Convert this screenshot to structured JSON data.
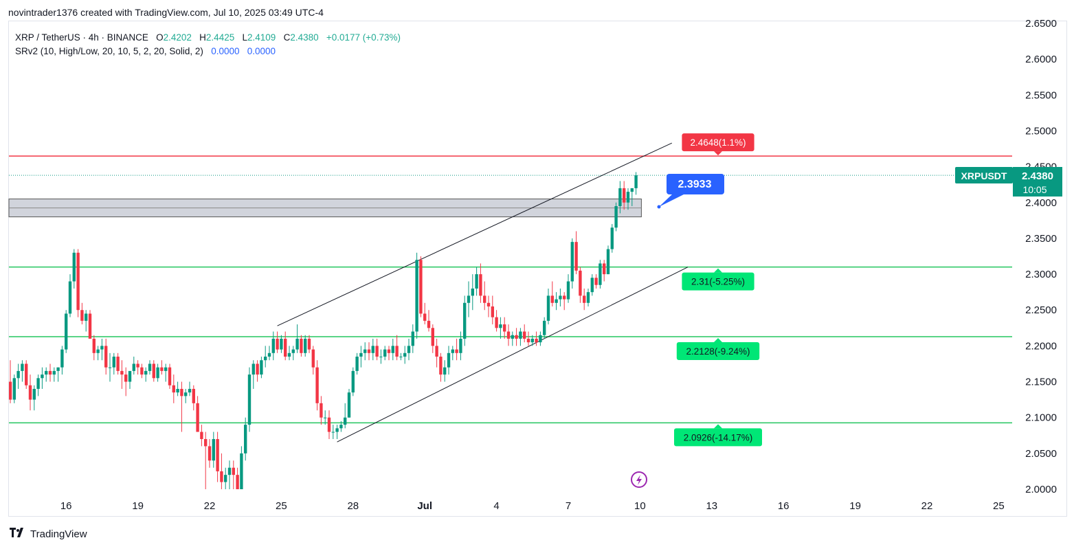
{
  "header": {
    "created_by": "novintrader1376 created with TradingView.com, Jul 10, 2025 03:49 UTC-4"
  },
  "legend": {
    "symbol": "XRP / TetherUS · 4h · BINANCE",
    "open_label": "O",
    "open": "2.4202",
    "high_label": "H",
    "high": "2.4425",
    "low_label": "L",
    "low": "2.4109",
    "close_label": "C",
    "close": "2.4380",
    "change": "+0.0177 (+0.73%)",
    "indicator": "SRv2 (10, High/Low, 20, 10, 5, 2, 20, Solid, 2)",
    "indicator_val1": "0.0000",
    "indicator_val2": "0.0000"
  },
  "footer": {
    "brand": "TradingView"
  },
  "chart_data": {
    "type": "candlestick",
    "symbol": "XRPUSDT",
    "timeframe": "4h",
    "exchange": "BINANCE",
    "ylim": [
      2.0,
      2.65
    ],
    "y_ticks": [
      "2.0000",
      "2.0500",
      "2.1000",
      "2.1500",
      "2.2000",
      "2.2500",
      "2.3000",
      "2.3500",
      "2.4000",
      "2.4500",
      "2.5000",
      "2.5500",
      "2.6000",
      "2.6500"
    ],
    "x_ticks": [
      {
        "label": "16",
        "bar": 14
      },
      {
        "label": "19",
        "bar": 32
      },
      {
        "label": "22",
        "bar": 50
      },
      {
        "label": "25",
        "bar": 68
      },
      {
        "label": "28",
        "bar": 86
      },
      {
        "label": "Jul",
        "bar": 104
      },
      {
        "label": "4",
        "bar": 122
      },
      {
        "label": "7",
        "bar": 140
      },
      {
        "label": "10",
        "bar": 158
      },
      {
        "label": "13",
        "bar": 176
      },
      {
        "label": "16",
        "bar": 194
      },
      {
        "label": "19",
        "bar": 212
      },
      {
        "label": "22",
        "bar": 230
      },
      {
        "label": "25",
        "bar": 248
      }
    ],
    "last_price": {
      "symbol": "XRPUSDT",
      "value": "2.4380",
      "countdown": "10:05",
      "price": 2.438
    },
    "levels": [
      {
        "price": 2.4648,
        "label": "2.4648(1.1%)",
        "color": "#f23645"
      },
      {
        "price": 2.31,
        "label": "2.31(-5.25%)",
        "color": "#00e676"
      },
      {
        "price": 2.2128,
        "label": "2.2128(-9.24%)",
        "color": "#00e676"
      },
      {
        "price": 2.0926,
        "label": "2.0926(-14.17%)",
        "color": "#00e676"
      }
    ],
    "callout": {
      "value": "2.3933",
      "price": 2.3933
    },
    "zone": {
      "top": 2.405,
      "bottom": 2.38
    },
    "channel": {
      "upper": {
        "start": {
          "bar": 67,
          "price": 2.228
        },
        "end": {
          "bar": 166,
          "price": 2.483
        }
      },
      "lower": {
        "start": {
          "bar": 82,
          "price": 2.066
        },
        "end": {
          "bar": 170,
          "price": 2.31
        }
      }
    },
    "candles": [
      [
        2.15,
        2.18,
        2.12,
        2.125
      ],
      [
        2.125,
        2.16,
        2.12,
        2.155
      ],
      [
        2.155,
        2.175,
        2.14,
        2.165
      ],
      [
        2.165,
        2.18,
        2.15,
        2.175
      ],
      [
        2.175,
        2.18,
        2.14,
        2.145
      ],
      [
        2.145,
        2.16,
        2.11,
        2.125
      ],
      [
        2.125,
        2.145,
        2.11,
        2.14
      ],
      [
        2.14,
        2.16,
        2.13,
        2.155
      ],
      [
        2.155,
        2.17,
        2.14,
        2.16
      ],
      [
        2.16,
        2.17,
        2.15,
        2.165
      ],
      [
        2.165,
        2.175,
        2.15,
        2.16
      ],
      [
        2.16,
        2.17,
        2.15,
        2.165
      ],
      [
        2.165,
        2.17,
        2.15,
        2.17
      ],
      [
        2.17,
        2.2,
        2.16,
        2.195
      ],
      [
        2.195,
        2.25,
        2.19,
        2.245
      ],
      [
        2.245,
        2.3,
        2.24,
        2.29
      ],
      [
        2.29,
        2.335,
        2.28,
        2.33
      ],
      [
        2.33,
        2.335,
        2.24,
        2.25
      ],
      [
        2.25,
        2.26,
        2.23,
        2.235
      ],
      [
        2.235,
        2.25,
        2.22,
        2.245
      ],
      [
        2.245,
        2.25,
        2.21,
        2.21
      ],
      [
        2.21,
        2.215,
        2.18,
        2.19
      ],
      [
        2.19,
        2.2,
        2.18,
        2.195
      ],
      [
        2.195,
        2.21,
        2.18,
        2.2
      ],
      [
        2.2,
        2.21,
        2.16,
        2.17
      ],
      [
        2.17,
        2.19,
        2.15,
        2.17
      ],
      [
        2.17,
        2.19,
        2.16,
        2.185
      ],
      [
        2.185,
        2.19,
        2.16,
        2.165
      ],
      [
        2.165,
        2.18,
        2.14,
        2.16
      ],
      [
        2.16,
        2.17,
        2.13,
        2.15
      ],
      [
        2.15,
        2.16,
        2.14,
        2.165
      ],
      [
        2.165,
        2.185,
        2.16,
        2.175
      ],
      [
        2.175,
        2.18,
        2.16,
        2.17
      ],
      [
        2.17,
        2.175,
        2.155,
        2.16
      ],
      [
        2.16,
        2.17,
        2.15,
        2.165
      ],
      [
        2.165,
        2.18,
        2.16,
        2.175
      ],
      [
        2.175,
        2.18,
        2.15,
        2.155
      ],
      [
        2.155,
        2.175,
        2.15,
        2.17
      ],
      [
        2.17,
        2.18,
        2.16,
        2.165
      ],
      [
        2.165,
        2.175,
        2.15,
        2.17
      ],
      [
        2.17,
        2.175,
        2.14,
        2.145
      ],
      [
        2.145,
        2.16,
        2.12,
        2.135
      ],
      [
        2.135,
        2.15,
        2.13,
        2.14
      ],
      [
        2.14,
        2.15,
        2.08,
        2.13
      ],
      [
        2.13,
        2.14,
        2.12,
        2.135
      ],
      [
        2.135,
        2.15,
        2.13,
        2.14
      ],
      [
        2.14,
        2.145,
        2.11,
        2.12
      ],
      [
        2.12,
        2.13,
        2.08,
        2.08
      ],
      [
        2.08,
        2.09,
        2.06,
        2.07
      ],
      [
        2.07,
        2.08,
        2.0,
        2.06
      ],
      [
        2.06,
        2.07,
        2.03,
        2.04
      ],
      [
        2.04,
        2.08,
        2.03,
        2.07
      ],
      [
        2.07,
        2.08,
        2.01,
        2.025
      ],
      [
        2.025,
        2.05,
        2.0,
        2.01
      ],
      [
        2.01,
        2.03,
        2.0,
        2.02
      ],
      [
        2.02,
        2.04,
        2.0,
        2.03
      ],
      [
        2.03,
        2.04,
        2.0,
        2.02
      ],
      [
        2.02,
        2.03,
        2.0,
        2.0
      ],
      [
        2.0,
        2.06,
        2.0,
        2.05
      ],
      [
        2.05,
        2.1,
        2.04,
        2.09
      ],
      [
        2.09,
        2.17,
        2.08,
        2.16
      ],
      [
        2.16,
        2.18,
        2.14,
        2.175
      ],
      [
        2.175,
        2.18,
        2.15,
        2.16
      ],
      [
        2.16,
        2.185,
        2.155,
        2.18
      ],
      [
        2.18,
        2.2,
        2.17,
        2.185
      ],
      [
        2.185,
        2.2,
        2.18,
        2.19
      ],
      [
        2.19,
        2.22,
        2.18,
        2.21
      ],
      [
        2.21,
        2.22,
        2.19,
        2.195
      ],
      [
        2.195,
        2.215,
        2.19,
        2.21
      ],
      [
        2.21,
        2.22,
        2.18,
        2.185
      ],
      [
        2.185,
        2.2,
        2.18,
        2.19
      ],
      [
        2.19,
        2.2,
        2.18,
        2.195
      ],
      [
        2.195,
        2.23,
        2.19,
        2.21
      ],
      [
        2.21,
        2.215,
        2.185,
        2.19
      ],
      [
        2.19,
        2.215,
        2.185,
        2.21
      ],
      [
        2.21,
        2.215,
        2.19,
        2.195
      ],
      [
        2.195,
        2.2,
        2.16,
        2.17
      ],
      [
        2.17,
        2.18,
        2.11,
        2.12
      ],
      [
        2.12,
        2.13,
        2.09,
        2.1
      ],
      [
        2.1,
        2.11,
        2.09,
        2.1
      ],
      [
        2.1,
        2.11,
        2.07,
        2.08
      ],
      [
        2.08,
        2.09,
        2.07,
        2.08
      ],
      [
        2.08,
        2.09,
        2.07,
        2.085
      ],
      [
        2.085,
        2.095,
        2.08,
        2.09
      ],
      [
        2.09,
        2.12,
        2.085,
        2.1
      ],
      [
        2.1,
        2.14,
        2.1,
        2.135
      ],
      [
        2.135,
        2.17,
        2.13,
        2.165
      ],
      [
        2.165,
        2.19,
        2.16,
        2.185
      ],
      [
        2.185,
        2.2,
        2.17,
        2.19
      ],
      [
        2.19,
        2.205,
        2.18,
        2.195
      ],
      [
        2.195,
        2.205,
        2.18,
        2.19
      ],
      [
        2.19,
        2.21,
        2.18,
        2.2
      ],
      [
        2.2,
        2.21,
        2.18,
        2.185
      ],
      [
        2.185,
        2.195,
        2.175,
        2.185
      ],
      [
        2.185,
        2.2,
        2.18,
        2.195
      ],
      [
        2.195,
        2.2,
        2.18,
        2.19
      ],
      [
        2.19,
        2.21,
        2.18,
        2.2
      ],
      [
        2.2,
        2.215,
        2.18,
        2.185
      ],
      [
        2.185,
        2.19,
        2.18,
        2.185
      ],
      [
        2.185,
        2.2,
        2.175,
        2.19
      ],
      [
        2.19,
        2.21,
        2.18,
        2.2
      ],
      [
        2.2,
        2.23,
        2.19,
        2.22
      ],
      [
        2.22,
        2.33,
        2.21,
        2.32
      ],
      [
        2.32,
        2.325,
        2.24,
        2.245
      ],
      [
        2.245,
        2.26,
        2.23,
        2.235
      ],
      [
        2.235,
        2.25,
        2.22,
        2.225
      ],
      [
        2.225,
        2.23,
        2.19,
        2.2
      ],
      [
        2.2,
        2.21,
        2.17,
        2.185
      ],
      [
        2.185,
        2.19,
        2.15,
        2.16
      ],
      [
        2.16,
        2.18,
        2.15,
        2.17
      ],
      [
        2.17,
        2.2,
        2.16,
        2.19
      ],
      [
        2.19,
        2.2,
        2.18,
        2.195
      ],
      [
        2.195,
        2.21,
        2.18,
        2.19
      ],
      [
        2.19,
        2.22,
        2.18,
        2.21
      ],
      [
        2.21,
        2.27,
        2.2,
        2.26
      ],
      [
        2.26,
        2.29,
        2.24,
        2.27
      ],
      [
        2.27,
        2.3,
        2.25,
        2.28
      ],
      [
        2.28,
        2.31,
        2.27,
        2.3
      ],
      [
        2.3,
        2.315,
        2.26,
        2.27
      ],
      [
        2.27,
        2.29,
        2.25,
        2.26
      ],
      [
        2.26,
        2.27,
        2.24,
        2.255
      ],
      [
        2.255,
        2.27,
        2.23,
        2.24
      ],
      [
        2.24,
        2.25,
        2.22,
        2.225
      ],
      [
        2.225,
        2.24,
        2.21,
        2.23
      ],
      [
        2.23,
        2.24,
        2.21,
        2.22
      ],
      [
        2.22,
        2.23,
        2.2,
        2.21
      ],
      [
        2.21,
        2.22,
        2.2,
        2.215
      ],
      [
        2.215,
        2.225,
        2.2,
        2.21
      ],
      [
        2.21,
        2.225,
        2.2,
        2.22
      ],
      [
        2.22,
        2.23,
        2.205,
        2.21
      ],
      [
        2.21,
        2.22,
        2.2,
        2.205
      ],
      [
        2.205,
        2.215,
        2.2,
        2.21
      ],
      [
        2.21,
        2.22,
        2.2,
        2.205
      ],
      [
        2.205,
        2.22,
        2.2,
        2.215
      ],
      [
        2.215,
        2.24,
        2.21,
        2.235
      ],
      [
        2.235,
        2.28,
        2.23,
        2.27
      ],
      [
        2.27,
        2.29,
        2.255,
        2.26
      ],
      [
        2.26,
        2.275,
        2.25,
        2.265
      ],
      [
        2.265,
        2.28,
        2.255,
        2.27
      ],
      [
        2.27,
        2.275,
        2.25,
        2.265
      ],
      [
        2.265,
        2.3,
        2.26,
        2.29
      ],
      [
        2.29,
        2.35,
        2.28,
        2.345
      ],
      [
        2.345,
        2.36,
        2.3,
        2.305
      ],
      [
        2.305,
        2.31,
        2.26,
        2.27
      ],
      [
        2.27,
        2.28,
        2.25,
        2.26
      ],
      [
        2.26,
        2.28,
        2.255,
        2.275
      ],
      [
        2.275,
        2.3,
        2.27,
        2.295
      ],
      [
        2.295,
        2.3,
        2.28,
        2.285
      ],
      [
        2.285,
        2.32,
        2.28,
        2.315
      ],
      [
        2.315,
        2.32,
        2.29,
        2.3
      ],
      [
        2.3,
        2.34,
        2.3,
        2.335
      ],
      [
        2.335,
        2.37,
        2.33,
        2.365
      ],
      [
        2.365,
        2.4,
        2.36,
        2.395
      ],
      [
        2.395,
        2.43,
        2.385,
        2.42
      ],
      [
        2.42,
        2.43,
        2.39,
        2.4
      ],
      [
        2.4,
        2.42,
        2.39,
        2.415
      ],
      [
        2.415,
        2.42,
        2.395,
        2.42
      ],
      [
        2.42,
        2.4425,
        2.4109,
        2.438
      ]
    ]
  }
}
